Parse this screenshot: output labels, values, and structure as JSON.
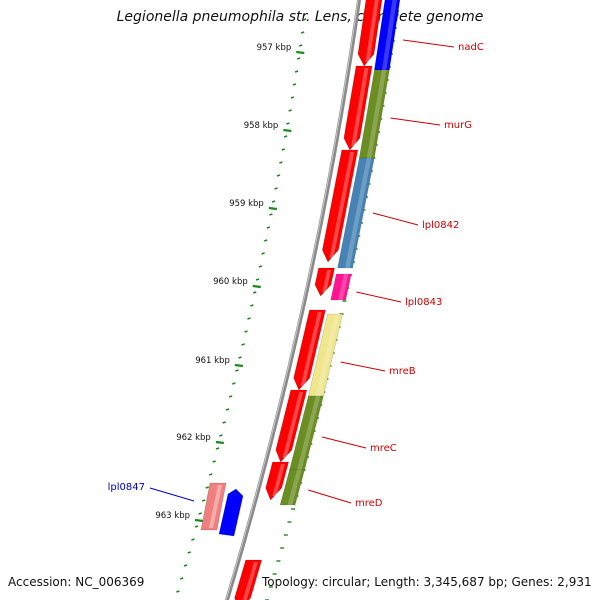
{
  "title": "Legionella pneumophila str. Lens, complete genome",
  "footer": {
    "accession": "Accession: NC_006369",
    "summary": "Topology: circular; Length: 3,345,687 bp; Genes: 2,931"
  },
  "ruler": {
    "ticks": [
      "957 kbp",
      "958 kbp",
      "959 kbp",
      "960 kbp",
      "961 kbp",
      "962 kbp",
      "963 kbp"
    ]
  },
  "genes": [
    {
      "name": "nadC",
      "color": "#0000ff",
      "label_color": "#cc0000"
    },
    {
      "name": "murG",
      "color": "#6b8e23",
      "label_color": "#cc0000"
    },
    {
      "name": "lpl0842",
      "color": "#4682b4",
      "label_color": "#cc0000"
    },
    {
      "name": "lpl0843",
      "color": "#ff1493",
      "label_color": "#cc0000"
    },
    {
      "name": "mreB",
      "color": "#f0e68c",
      "label_color": "#cc0000"
    },
    {
      "name": "mreC",
      "color": "#6b8e23",
      "label_color": "#cc0000"
    },
    {
      "name": "mreD",
      "color": "#6b8e23",
      "label_color": "#cc0000"
    },
    {
      "name": "lpl0847",
      "color": "#f08080",
      "label_color": "#0000cc"
    }
  ],
  "colors": {
    "cds": "#ff0000",
    "backbone": "#8a8a8a",
    "tick": "#1a8a1a"
  }
}
